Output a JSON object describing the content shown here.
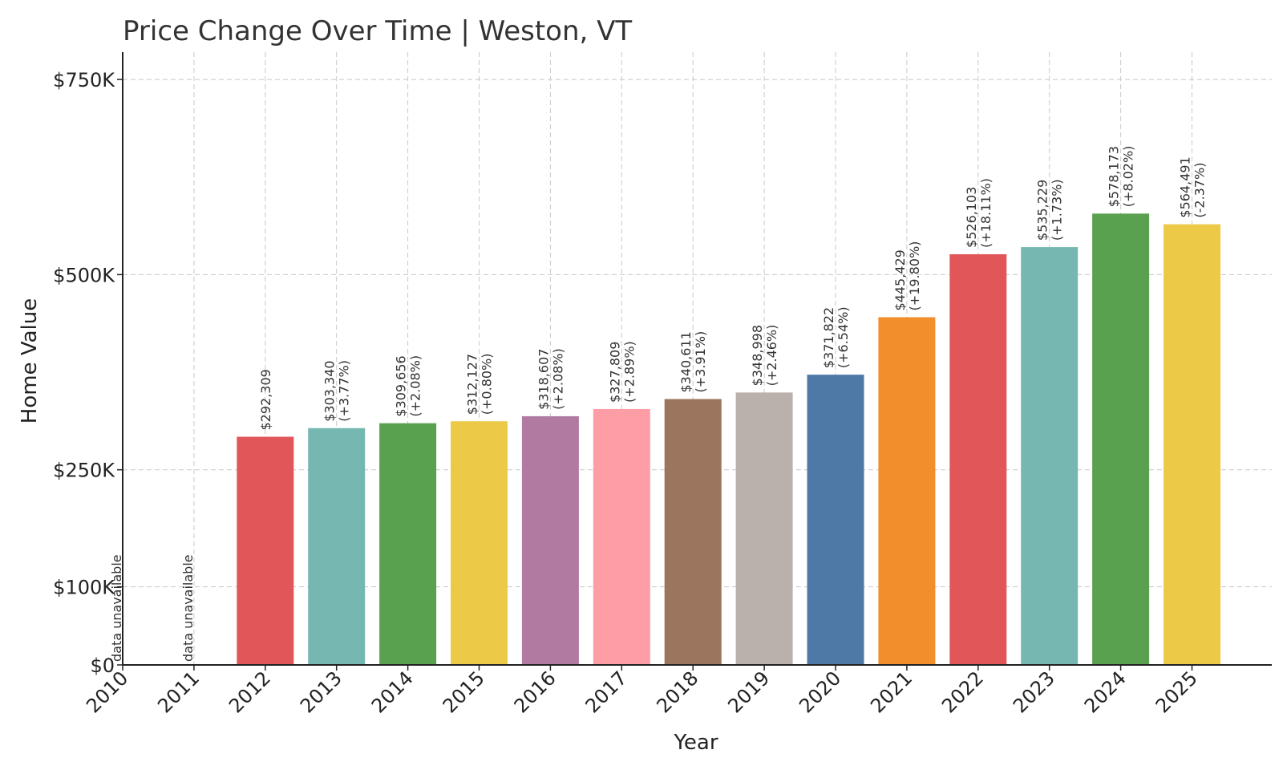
{
  "chart_data": {
    "type": "bar",
    "title": "Price Change Over Time | Weston, VT",
    "xlabel": "Year",
    "ylabel": "Home Value",
    "ylim": [
      0,
      785000
    ],
    "yticks": [
      {
        "value": 0,
        "label": "$0"
      },
      {
        "value": 100000,
        "label": "$100K"
      },
      {
        "value": 250000,
        "label": "$250K"
      },
      {
        "value": 500000,
        "label": "$500K"
      },
      {
        "value": 750000,
        "label": "$750K"
      }
    ],
    "grid": true,
    "categories": [
      "2010",
      "2011",
      "2012",
      "2013",
      "2014",
      "2015",
      "2016",
      "2017",
      "2018",
      "2019",
      "2020",
      "2021",
      "2022",
      "2023",
      "2024",
      "2025"
    ],
    "values": [
      null,
      null,
      292309,
      303340,
      309656,
      312127,
      318607,
      327809,
      340611,
      348998,
      371822,
      445429,
      526103,
      535229,
      578173,
      564491
    ],
    "value_labels": [
      "",
      "",
      "$292,309",
      "$303,340",
      "$309,656",
      "$312,127",
      "$318,607",
      "$327,809",
      "$340,611",
      "$348,998",
      "$371,822",
      "$445,429",
      "$526,103",
      "$535,229",
      "$578,173",
      "$564,491"
    ],
    "change_labels": [
      "",
      "",
      "",
      "(+3.77%)",
      "(+2.08%)",
      "(+0.80%)",
      "(+2.08%)",
      "(+2.89%)",
      "(+3.91%)",
      "(+2.46%)",
      "(+6.54%)",
      "(+19.80%)",
      "(+18.11%)",
      "(+1.73%)",
      "(+8.02%)",
      "(-2.37%)"
    ],
    "na_label": "data unavailable",
    "colors": [
      "#e15759",
      "#76b7b2",
      "#59a14f",
      "#edc948",
      "#b07aa1",
      "#ff9da7",
      "#9c755f",
      "#bab0ac",
      "#4e79a7",
      "#f28e2b",
      "#e15759",
      "#76b7b2",
      "#59a14f",
      "#edc948"
    ]
  }
}
